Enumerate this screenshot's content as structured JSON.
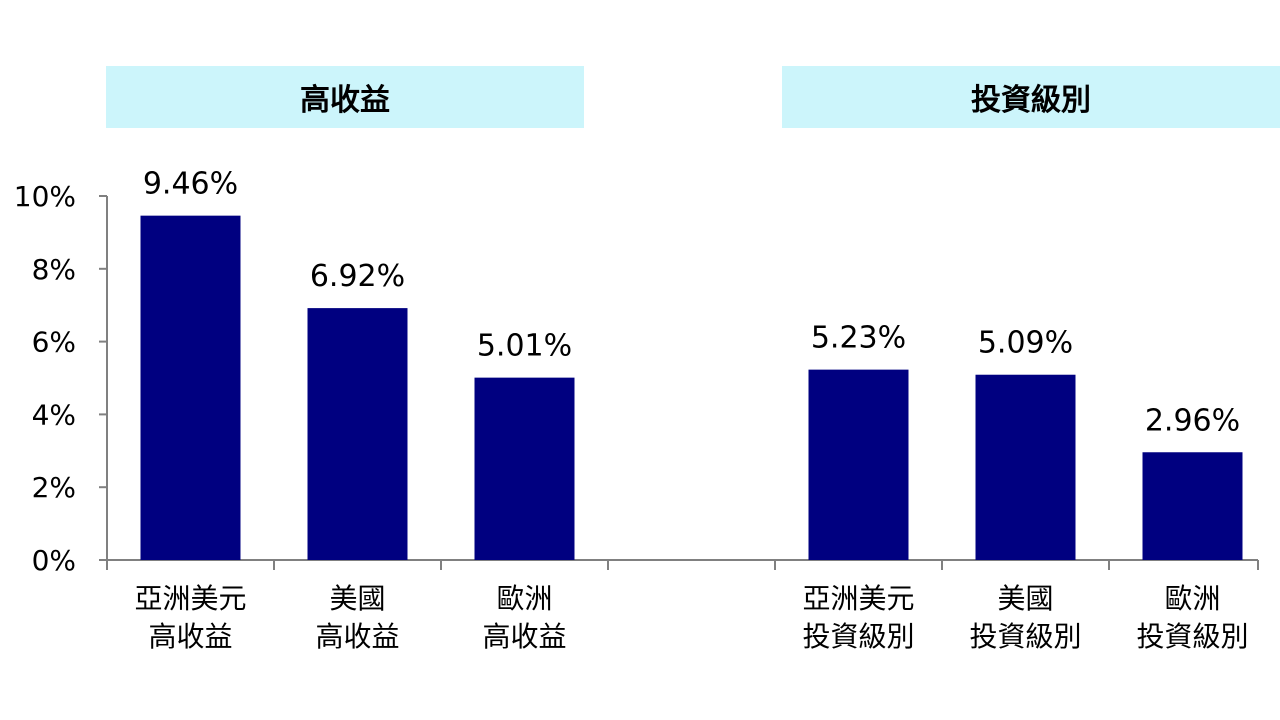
{
  "chart_data": {
    "type": "bar",
    "groups": [
      {
        "title": "高收益",
        "categories": [
          [
            "亞洲美元",
            "高收益"
          ],
          [
            "美國",
            "高收益"
          ],
          [
            "歐洲",
            "高收益"
          ]
        ],
        "values": [
          9.46,
          6.92,
          5.01
        ],
        "labels": [
          "9.46%",
          "6.92%",
          "5.01%"
        ]
      },
      {
        "title": "投資級別",
        "categories": [
          [
            "亞洲美元",
            "投資級別"
          ],
          [
            "美國",
            "投資級別"
          ],
          [
            "歐洲",
            "投資級別"
          ]
        ],
        "values": [
          5.23,
          5.09,
          2.96
        ],
        "labels": [
          "5.23%",
          "5.09%",
          "2.96%"
        ]
      }
    ],
    "yticks": [
      "0%",
      "2%",
      "4%",
      "6%",
      "8%",
      "10%"
    ],
    "ylim": [
      0,
      10
    ],
    "grid": false,
    "bar_color": "#000080",
    "header_color": "#ccf5fb"
  }
}
